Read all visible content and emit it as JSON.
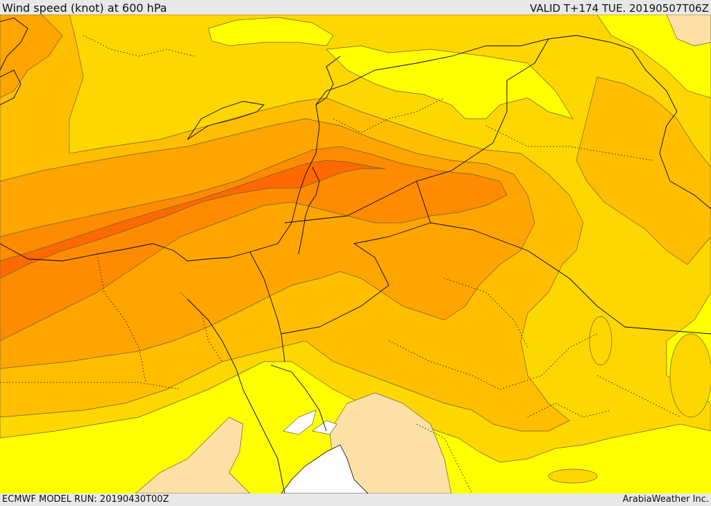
{
  "header": {
    "title": "Wind speed (knot) at 600 hPa",
    "valid_time": "VALID T+174 TUE. 20190507T06Z"
  },
  "footer": {
    "model_run": "ECMWF MODEL RUN: 20190430T00Z",
    "credit": "ArabiaWeather Inc."
  },
  "palette": {
    "white": "#ffffff",
    "peach": "#fde0a6",
    "yellow": "#ffff00",
    "gold": "#ffd700",
    "amber": "#ffbf00",
    "orange_light": "#ffa500",
    "orange": "#ff8c00",
    "orange_dark": "#ff6a00",
    "border_color": "#000000",
    "contour_color": "#6a5f3a"
  }
}
